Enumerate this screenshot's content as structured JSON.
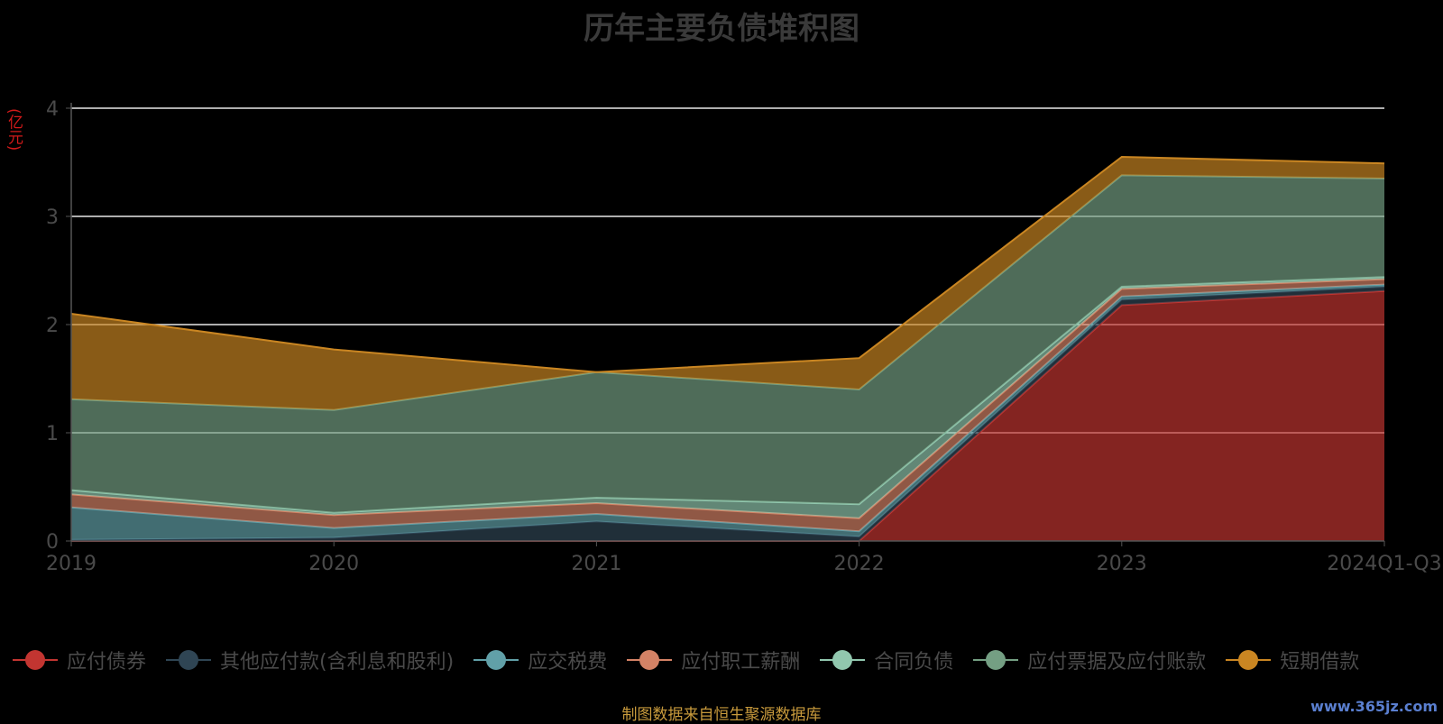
{
  "chart_data": {
    "type": "area",
    "title": "历年主要负债堆积图",
    "ylabel": "(亿元)",
    "ylim": [
      0,
      4
    ],
    "yticks": [
      0,
      1,
      2,
      3,
      4
    ],
    "stacked": true,
    "grid": true,
    "legend_position": "bottom",
    "categories": [
      "2019",
      "2020",
      "2021",
      "2022",
      "2023",
      "2024Q1-Q3"
    ],
    "series": [
      {
        "name": "应付债券",
        "color": "#c23531",
        "values": [
          0,
          0,
          0,
          0,
          2.18,
          2.31
        ]
      },
      {
        "name": "其他应付款(含利息和股利)",
        "color": "#2f4554",
        "values": [
          0.01,
          0.03,
          0.18,
          0.04,
          0.05,
          0.04
        ]
      },
      {
        "name": "应交税费",
        "color": "#61a0a8",
        "values": [
          0.3,
          0.09,
          0.07,
          0.05,
          0.03,
          0.02
        ]
      },
      {
        "name": "应付职工薪酬",
        "color": "#d48265",
        "values": [
          0.12,
          0.12,
          0.1,
          0.12,
          0.07,
          0.05
        ]
      },
      {
        "name": "合同负债",
        "color": "#91c7ae",
        "values": [
          0.04,
          0.02,
          0.05,
          0.13,
          0.02,
          0.02
        ]
      },
      {
        "name": "应付票据及应付账款",
        "color": "#749f83",
        "values": [
          0.84,
          0.95,
          1.16,
          1.06,
          1.03,
          0.91
        ]
      },
      {
        "name": "短期借款",
        "color": "#ca8622",
        "values": [
          0.79,
          0.56,
          0.0,
          0.29,
          0.17,
          0.14
        ]
      }
    ]
  },
  "footer": {
    "source": "制图数据来自恒生聚源数据库",
    "watermark": "www.365jz.com"
  }
}
